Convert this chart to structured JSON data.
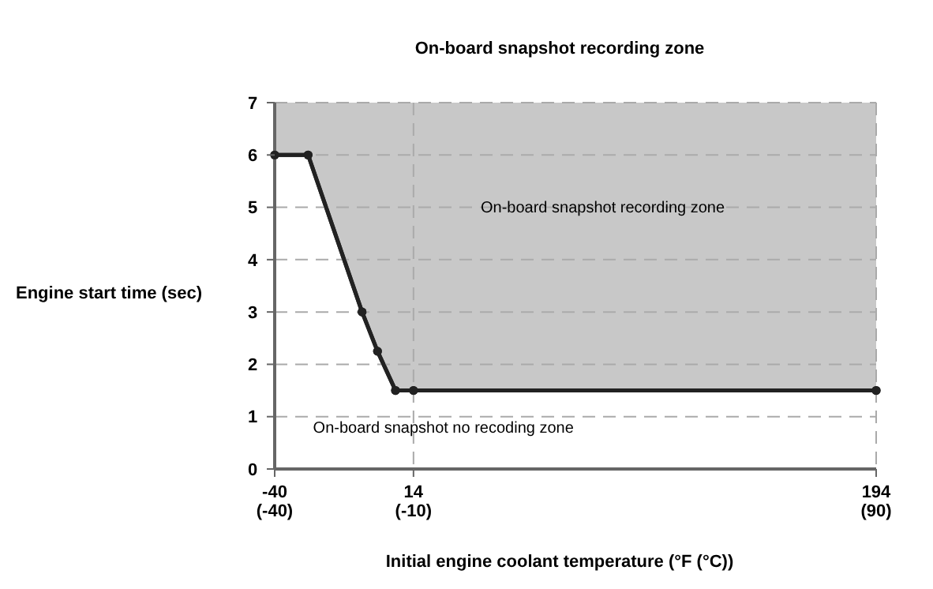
{
  "chart_data": {
    "type": "line",
    "title": "On-board snapshot recording zone",
    "xlabel": "Initial engine coolant temperature (°F (°C))",
    "ylabel": "Engine start time (sec)",
    "x": [
      -40,
      -27,
      -6,
      0,
      7,
      14,
      194
    ],
    "series": [
      {
        "color": "#222222",
        "values": [
          6,
          6,
          3,
          2.25,
          1.5,
          1.5,
          1.5
        ],
        "lower": [
          6,
          6,
          3,
          2.25,
          1.5,
          1.5,
          1.5
        ],
        "upper": [
          7,
          7,
          7,
          7,
          7,
          7,
          7
        ]
      }
    ],
    "xlim": [
      -40,
      194
    ],
    "xticks": [
      -40,
      14,
      194
    ],
    "x2lim": [
      -40,
      90
    ],
    "x2ticks": [
      {
        "value": -40,
        "label": "(-40)"
      },
      {
        "value": -10,
        "label": "(-10)"
      },
      {
        "value": 90,
        "label": "(90)"
      }
    ],
    "ylim": [
      0,
      7
    ],
    "yticks": [
      0,
      1,
      2,
      3,
      4,
      5,
      6,
      7
    ],
    "grid": true,
    "marker": "circle",
    "line_style": "solid",
    "annotations": [
      "On-board snapshot recording zone",
      "On-board snapshot no recoding zone"
    ]
  }
}
